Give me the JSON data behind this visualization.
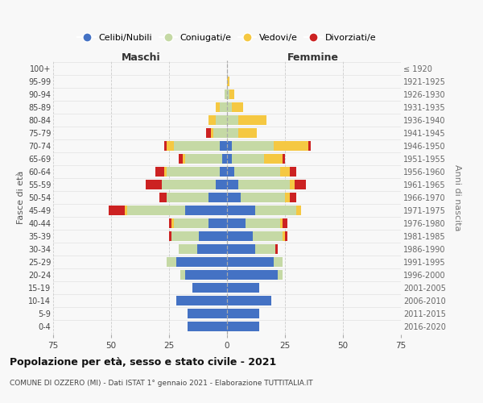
{
  "age_groups": [
    "100+",
    "95-99",
    "90-94",
    "85-89",
    "80-84",
    "75-79",
    "70-74",
    "65-69",
    "60-64",
    "55-59",
    "50-54",
    "45-49",
    "40-44",
    "35-39",
    "30-34",
    "25-29",
    "20-24",
    "15-19",
    "10-14",
    "5-9",
    "0-4"
  ],
  "birth_years": [
    "≤ 1920",
    "1921-1925",
    "1926-1930",
    "1931-1935",
    "1936-1940",
    "1941-1945",
    "1946-1950",
    "1951-1955",
    "1956-1960",
    "1961-1965",
    "1966-1970",
    "1971-1975",
    "1976-1980",
    "1981-1985",
    "1986-1990",
    "1991-1995",
    "1996-2000",
    "2001-2005",
    "2006-2010",
    "2011-2015",
    "2016-2020"
  ],
  "maschi_celibe": [
    0,
    0,
    0,
    0,
    0,
    0,
    3,
    2,
    3,
    5,
    8,
    18,
    8,
    12,
    13,
    22,
    18,
    15,
    22,
    17,
    17
  ],
  "maschi_coniugato": [
    0,
    0,
    1,
    3,
    5,
    6,
    20,
    16,
    23,
    23,
    18,
    25,
    15,
    12,
    8,
    4,
    2,
    0,
    0,
    0,
    0
  ],
  "maschi_vedovo": [
    0,
    0,
    0,
    2,
    3,
    1,
    3,
    1,
    1,
    0,
    0,
    1,
    1,
    0,
    0,
    0,
    0,
    0,
    0,
    0,
    0
  ],
  "maschi_divorziato": [
    0,
    0,
    0,
    0,
    0,
    2,
    1,
    2,
    4,
    7,
    3,
    7,
    1,
    1,
    0,
    0,
    0,
    0,
    0,
    0,
    0
  ],
  "femmine_celibe": [
    0,
    0,
    0,
    0,
    0,
    0,
    2,
    2,
    3,
    5,
    6,
    12,
    8,
    11,
    12,
    20,
    22,
    14,
    19,
    14,
    14
  ],
  "femmine_coniugato": [
    0,
    0,
    1,
    2,
    5,
    5,
    18,
    14,
    20,
    22,
    19,
    18,
    15,
    13,
    9,
    4,
    2,
    0,
    0,
    0,
    0
  ],
  "femmine_vedovo": [
    0,
    1,
    2,
    5,
    12,
    8,
    15,
    8,
    4,
    2,
    2,
    2,
    1,
    1,
    0,
    0,
    0,
    0,
    0,
    0,
    0
  ],
  "femmine_divorziato": [
    0,
    0,
    0,
    0,
    0,
    0,
    1,
    1,
    3,
    5,
    3,
    0,
    2,
    1,
    1,
    0,
    0,
    0,
    0,
    0,
    0
  ],
  "colors": {
    "celibe": "#4472c4",
    "coniugato": "#c5d9a5",
    "vedovo": "#f5c842",
    "divorziato": "#cc2222"
  },
  "xlim": 75,
  "title": "Popolazione per età, sesso e stato civile - 2021",
  "subtitle": "COMUNE DI OZZERO (MI) - Dati ISTAT 1° gennaio 2021 - Elaborazione TUTTITALIA.IT",
  "ylabel": "Fasce di età",
  "ylabel_right": "Anni di nascita",
  "xlabel_maschi": "Maschi",
  "xlabel_femmine": "Femmine",
  "legend_labels": [
    "Celibi/Nubili",
    "Coniugati/e",
    "Vedovi/e",
    "Divorziati/e"
  ],
  "bg_color": "#f8f8f8",
  "grid_color": "#cccccc"
}
